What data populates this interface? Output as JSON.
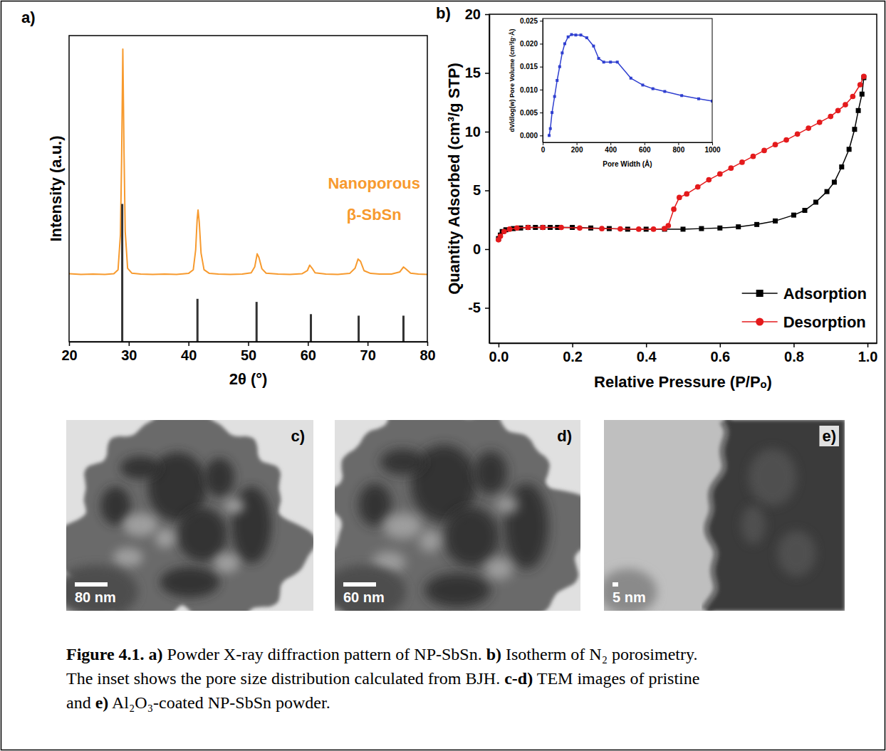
{
  "chart_data": [
    {
      "type": "line",
      "panel": "a)",
      "xlabel": "2θ (°)",
      "ylabel": "Intensity (a.u.)",
      "xlim": [
        20,
        80
      ],
      "xticks": [
        20,
        30,
        40,
        50,
        60,
        70,
        80
      ],
      "ylim": [
        0,
        100
      ],
      "tick_labels": "x",
      "annotations": [
        "Nanoporous",
        "β-SbSn"
      ],
      "series": [
        {
          "type": "line",
          "color": "#f79a2e",
          "x": [
            20,
            22,
            24,
            26,
            27.5,
            28.2,
            28.6,
            28.8,
            29,
            29.2,
            29.4,
            29.8,
            30.5,
            32,
            34,
            36,
            38,
            40,
            40.8,
            41.2,
            41.45,
            41.6,
            41.8,
            42.1,
            42.6,
            43.5,
            45,
            47,
            49,
            50.5,
            51.1,
            51.5,
            51.8,
            52.3,
            53,
            55,
            57,
            59,
            59.9,
            60.3,
            60.7,
            61.2,
            63,
            65,
            67,
            67.9,
            68.4,
            68.8,
            69.4,
            70.5,
            72,
            74,
            75.4,
            76,
            76.5,
            77.2,
            78.5,
            80
          ],
          "values": [
            22.2,
            22,
            22.1,
            22,
            22.2,
            23.5,
            35,
            60,
            95.6,
            62,
            36,
            24,
            22.4,
            22.1,
            22,
            22.1,
            22,
            22.3,
            23.5,
            30,
            40,
            43,
            39,
            29,
            23.5,
            22.3,
            22.1,
            22,
            22.1,
            22.5,
            24.5,
            28.7,
            27.5,
            23.8,
            22.4,
            22.1,
            22,
            22.2,
            23.2,
            25,
            24,
            22.5,
            22.1,
            22,
            22.3,
            24,
            27,
            26.3,
            23.2,
            22.3,
            22.1,
            22.1,
            22.8,
            24.4,
            23.6,
            22.4,
            22.1,
            22
          ]
        },
        {
          "type": "bar",
          "color": "#333333",
          "x": [
            28.9,
            41.5,
            51.4,
            60.5,
            68.5,
            76
          ],
          "values": [
            45,
            14,
            13,
            9,
            8.5,
            8.5
          ]
        }
      ]
    },
    {
      "type": "line",
      "panel": "b)",
      "xlabel": "Relative Pressure (P/Pₒ)",
      "ylabel": "Quantity Adsorbed (cm³/g STP)",
      "xlim": [
        -0.025,
        1.025
      ],
      "xticks": [
        {
          "value": 0,
          "label": "0.0"
        },
        0.2,
        0.4,
        0.6,
        0.8,
        {
          "value": 1,
          "label": "1.0"
        }
      ],
      "ylim": [
        -8,
        20
      ],
      "yticks": [
        -5,
        0,
        5,
        10,
        15,
        20
      ],
      "legend": "lower right",
      "series": [
        {
          "name": "Adsorption",
          "color": "#000000",
          "marker": "square",
          "x": [
            0,
            0.005,
            0.01,
            0.02,
            0.04,
            0.06,
            0.08,
            0.1,
            0.12,
            0.14,
            0.16,
            0.2,
            0.25,
            0.3,
            0.35,
            0.4,
            0.45,
            0.5,
            0.55,
            0.6,
            0.65,
            0.7,
            0.75,
            0.8,
            0.83,
            0.86,
            0.89,
            0.91,
            0.93,
            0.95,
            0.965,
            0.975,
            0.985,
            0.99
          ],
          "values": [
            0.9,
            1.2,
            1.5,
            1.65,
            1.75,
            1.8,
            1.85,
            1.85,
            1.85,
            1.85,
            1.85,
            1.85,
            1.8,
            1.75,
            1.7,
            1.7,
            1.7,
            1.7,
            1.75,
            1.8,
            1.9,
            2.1,
            2.4,
            2.9,
            3.3,
            4,
            4.9,
            5.7,
            7,
            8.5,
            10.2,
            11.8,
            13.2,
            14.6
          ]
        },
        {
          "name": "Desorption",
          "color": "#e41a1c",
          "marker": "circle",
          "x": [
            0.99,
            0.98,
            0.96,
            0.94,
            0.92,
            0.9,
            0.87,
            0.84,
            0.81,
            0.78,
            0.75,
            0.72,
            0.69,
            0.66,
            0.63,
            0.6,
            0.57,
            0.54,
            0.51,
            0.49,
            0.475,
            0.46,
            0.45,
            0.42,
            0.38,
            0.33,
            0.28,
            0.22,
            0.17,
            0.12,
            0.08,
            0.05,
            0.03,
            0.015,
            0.005,
            0
          ],
          "values": [
            14.7,
            14,
            13,
            12.3,
            11.8,
            11.3,
            10.8,
            10.3,
            9.8,
            9.3,
            8.9,
            8.4,
            7.9,
            7.4,
            6.9,
            6.4,
            5.9,
            5.3,
            4.7,
            4.4,
            3.4,
            2,
            1.75,
            1.7,
            1.7,
            1.72,
            1.75,
            1.8,
            1.85,
            1.85,
            1.85,
            1.8,
            1.7,
            1.5,
            1.1,
            0.8
          ]
        }
      ]
    },
    {
      "type": "line",
      "xlabel": "Pore Width (Å)",
      "ylabel": "dV/dlog(w) Pore Volume (cm³/g·Å)",
      "xlim": [
        0,
        1000
      ],
      "xticks": [
        0,
        200,
        400,
        600,
        800,
        1000
      ],
      "ylim": [
        -0.0015,
        0.0255
      ],
      "yticks": [
        {
          "value": 0,
          "label": "0.000"
        },
        0.005,
        {
          "value": 0.01,
          "label": "0.010"
        },
        0.015,
        {
          "value": 0.02,
          "label": "0.020"
        },
        0.025
      ],
      "series": [
        {
          "color": "#2f3fd0",
          "marker": "square",
          "x": [
            38,
            45,
            55,
            70,
            85,
            100,
            115,
            130,
            150,
            170,
            195,
            225,
            260,
            300,
            330,
            360,
            400,
            440,
            520,
            590,
            650,
            720,
            820,
            920,
            1000
          ],
          "values": [
            0,
            0.0015,
            0.005,
            0.0085,
            0.012,
            0.015,
            0.018,
            0.02,
            0.0215,
            0.022,
            0.0219,
            0.0219,
            0.0213,
            0.0195,
            0.0168,
            0.016,
            0.016,
            0.016,
            0.0125,
            0.011,
            0.0102,
            0.0096,
            0.0087,
            0.008,
            0.0075
          ]
        }
      ]
    }
  ],
  "figure": {
    "images": [
      {
        "label": "c)",
        "scale_bar": "80 nm"
      },
      {
        "label": "d)",
        "scale_bar": "60 nm"
      },
      {
        "label": "e)",
        "scale_bar": "5 nm"
      }
    ],
    "caption": [
      [
        {
          "strong": "Figure 4.1."
        },
        {
          "text": " "
        },
        {
          "strong": "a)"
        },
        {
          "text": " Powder X-ray diffraction pattern of NP-SbSn. "
        },
        {
          "strong": "b)"
        },
        {
          "text": " Isotherm of N₂ porosimetry."
        }
      ],
      [
        {
          "text": "The inset shows the pore size distribution calculated from BJH. "
        },
        {
          "strong": "c-d)"
        },
        {
          "text": " TEM images of pristine"
        }
      ],
      [
        {
          "text": "and "
        },
        {
          "strong": "e)"
        },
        {
          "text": " Al₂O₃-coated NP-SbSn powder."
        }
      ]
    ]
  }
}
